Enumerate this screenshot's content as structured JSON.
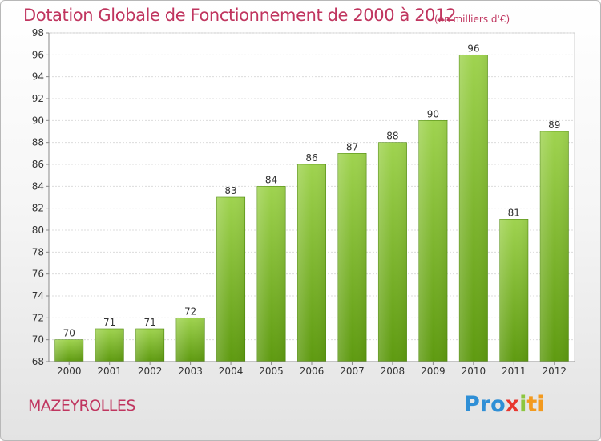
{
  "title": "Dotation Globale de Fonctionnement de 2000 à 2012",
  "subtitle": "(en milliers d'€)",
  "place": "MAZEYROLLES",
  "logo": {
    "parts": [
      "Pro",
      "x",
      "i",
      "ti"
    ]
  },
  "colors": {
    "bar_top": "#9fd34f",
    "bar_bottom": "#5e9a10",
    "accent_text": "#c0355f",
    "plot_background": "#ffffff"
  },
  "chart_data": {
    "type": "bar",
    "title": "Dotation Globale de Fonctionnement de 2000 à 2012",
    "subtitle": "(en milliers d'€)",
    "xlabel": "",
    "ylabel": "",
    "categories": [
      "2000",
      "2001",
      "2002",
      "2003",
      "2004",
      "2005",
      "2006",
      "2007",
      "2008",
      "2009",
      "2010",
      "2011",
      "2012"
    ],
    "values": [
      70,
      71,
      71,
      72,
      83,
      84,
      86,
      87,
      88,
      90,
      96,
      81,
      89
    ],
    "ylim": [
      68,
      98
    ],
    "yticks": [
      68,
      70,
      72,
      74,
      76,
      78,
      80,
      82,
      84,
      86,
      88,
      90,
      92,
      94,
      96,
      98
    ],
    "grid": true,
    "legend": "none"
  }
}
